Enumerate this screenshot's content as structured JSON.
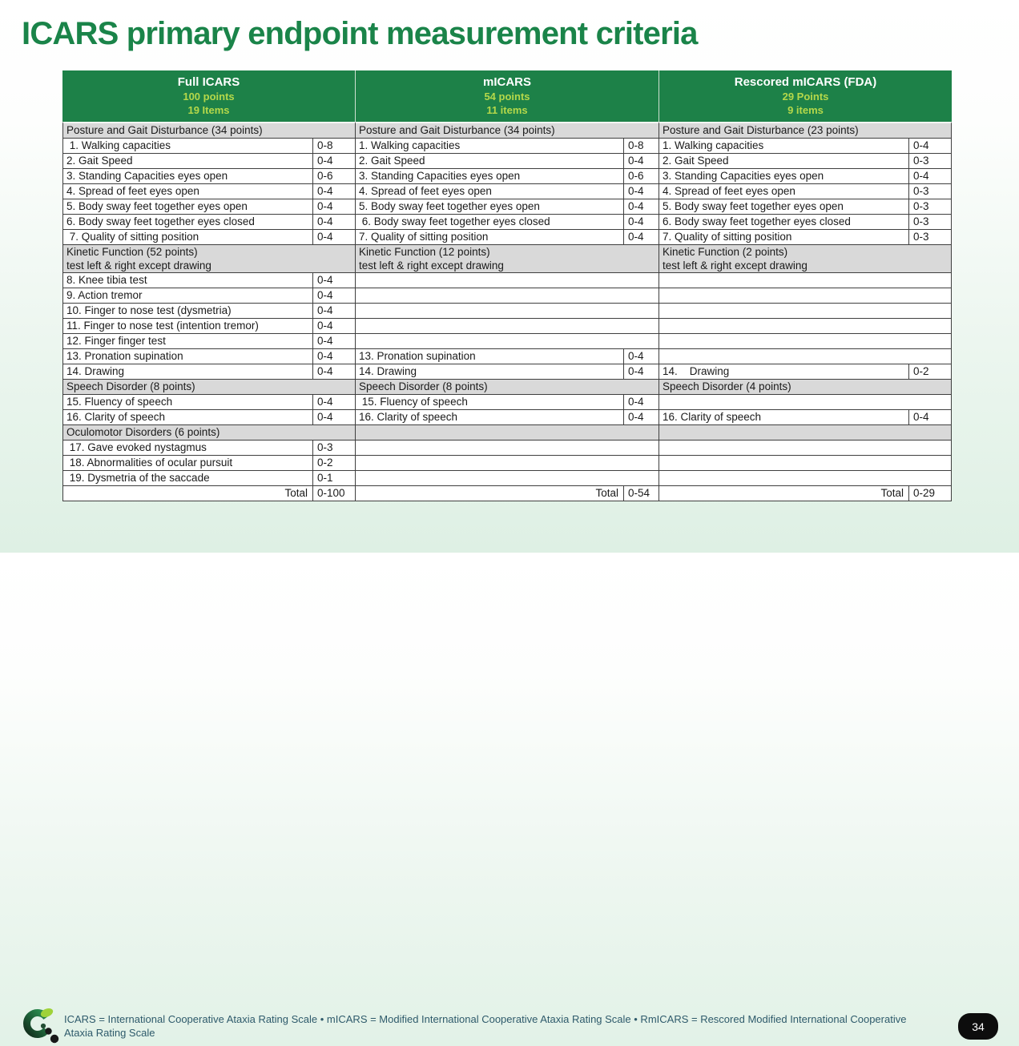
{
  "page": {
    "title": "ICARS primary endpoint measurement criteria",
    "page_number": "34",
    "footnote": {
      "line1": "ICARS = International Cooperative Ataxia Rating Scale • mICARS = Modified International Cooperative Ataxia Rating Scale • RmICARS = Rescored Modified International Cooperative",
      "line2": "Ataxia Rating Scale"
    }
  },
  "colors": {
    "header_green": "#1d8148",
    "title_green": "#1a8449",
    "lime_accent": "#b5d84a",
    "section_gray": "#d9d9d9",
    "border_dark": "#3f3f3f",
    "footnote_blue": "#2e5a6b",
    "badge_black": "#0d0d0d",
    "background_mint": "#def0e4"
  },
  "table": {
    "columns": [
      {
        "id": "full-icars",
        "header": {
          "title": "Full ICARS",
          "points": "100 points",
          "items": "19 Items"
        },
        "rows": [
          {
            "type": "section",
            "label": "Posture and Gait Disturbance (34 points)"
          },
          {
            "type": "item",
            "label": " 1. Walking capacities",
            "value": "0-8"
          },
          {
            "type": "item",
            "label": "2. Gait Speed",
            "value": "0-4"
          },
          {
            "type": "item",
            "label": "3. Standing Capacities eyes open",
            "value": "0-6"
          },
          {
            "type": "item",
            "label": "4. Spread of feet eyes open",
            "value": "0-4"
          },
          {
            "type": "item",
            "label": "5. Body sway feet together eyes open",
            "value": "0-4"
          },
          {
            "type": "item",
            "label": "6. Body sway feet together eyes closed",
            "value": "0-4"
          },
          {
            "type": "item",
            "label": " 7. Quality of sitting position",
            "value": "0-4"
          },
          {
            "type": "section2",
            "label": "Kinetic Function (52 points)\ntest left & right except drawing"
          },
          {
            "type": "item",
            "label": "8. Knee tibia test",
            "value": "0-4"
          },
          {
            "type": "item",
            "label": "9. Action tremor",
            "value": "0-4"
          },
          {
            "type": "item",
            "label": "10. Finger to nose test (dysmetria)",
            "value": "0-4"
          },
          {
            "type": "item",
            "label": "11. Finger to nose test (intention tremor)",
            "value": "0-4"
          },
          {
            "type": "item",
            "label": "12. Finger finger test",
            "value": "0-4"
          },
          {
            "type": "item",
            "label": "13. Pronation supination",
            "value": "0-4"
          },
          {
            "type": "item",
            "label": "14. Drawing",
            "value": "0-4"
          },
          {
            "type": "section",
            "label": "Speech Disorder (8 points)"
          },
          {
            "type": "item",
            "label": "15. Fluency of speech",
            "value": "0-4"
          },
          {
            "type": "item",
            "label": "16. Clarity of speech",
            "value": "0-4"
          },
          {
            "type": "section",
            "label": "Oculomotor Disorders (6 points)"
          },
          {
            "type": "item",
            "label": " 17. Gave evoked nystagmus",
            "value": "0-3"
          },
          {
            "type": "item",
            "label": " 18. Abnormalities of ocular pursuit",
            "value": "0-2"
          },
          {
            "type": "item",
            "label": " 19. Dysmetria of the saccade",
            "value": "0-1"
          },
          {
            "type": "total",
            "label": "Total",
            "value": "0-100"
          }
        ]
      },
      {
        "id": "micars",
        "header": {
          "title": "mICARS",
          "points": "54 points",
          "items": "11 items"
        },
        "rows": [
          {
            "type": "section",
            "label": "Posture and Gait Disturbance (34 points)"
          },
          {
            "type": "item",
            "label": "1. Walking capacities",
            "value": "0-8"
          },
          {
            "type": "item",
            "label": "2. Gait Speed",
            "value": "0-4"
          },
          {
            "type": "item",
            "label": "3. Standing Capacities eyes open",
            "value": "0-6"
          },
          {
            "type": "item",
            "label": "4. Spread of feet eyes open",
            "value": "0-4"
          },
          {
            "type": "item",
            "label": "5. Body sway feet together eyes open",
            "value": "0-4"
          },
          {
            "type": "item",
            "label": " 6. Body sway feet together eyes closed",
            "value": "0-4"
          },
          {
            "type": "item",
            "label": "7. Quality of sitting position",
            "value": "0-4"
          },
          {
            "type": "section2",
            "label": "Kinetic Function (12 points)\ntest left & right except drawing"
          },
          {
            "type": "empty",
            "label": ""
          },
          {
            "type": "empty",
            "label": ""
          },
          {
            "type": "empty",
            "label": ""
          },
          {
            "type": "empty",
            "label": ""
          },
          {
            "type": "empty",
            "label": ""
          },
          {
            "type": "item",
            "label": "13. Pronation supination",
            "value": "0-4"
          },
          {
            "type": "item",
            "label": "14. Drawing",
            "value": "0-4"
          },
          {
            "type": "section",
            "label": "Speech Disorder (8 points)"
          },
          {
            "type": "item",
            "label": " 15. Fluency of speech",
            "value": "0-4"
          },
          {
            "type": "item",
            "label": "16. Clarity of speech",
            "value": "0-4"
          },
          {
            "type": "section",
            "label": ""
          },
          {
            "type": "empty",
            "label": ""
          },
          {
            "type": "empty",
            "label": ""
          },
          {
            "type": "empty",
            "label": ""
          },
          {
            "type": "total",
            "label": "Total",
            "value": "0-54"
          }
        ]
      },
      {
        "id": "rescored-micars-fda",
        "header": {
          "title": "Rescored mICARS (FDA)",
          "points": "29 Points",
          "items": "9 items"
        },
        "rows": [
          {
            "type": "section",
            "label": "Posture and Gait Disturbance (23 points)"
          },
          {
            "type": "item",
            "label": "1. Walking capacities",
            "value": "0-4"
          },
          {
            "type": "item",
            "label": "2. Gait Speed",
            "value": "0-3"
          },
          {
            "type": "item",
            "label": "3. Standing Capacities eyes open",
            "value": "0-4"
          },
          {
            "type": "item",
            "label": "4. Spread of feet eyes open",
            "value": "0-3"
          },
          {
            "type": "item",
            "label": "5. Body sway feet together eyes open",
            "value": "0-3"
          },
          {
            "type": "item",
            "label": "6. Body sway feet together eyes closed",
            "value": "0-3"
          },
          {
            "type": "item",
            "label": "7. Quality of sitting position",
            "value": "0-3"
          },
          {
            "type": "section2",
            "label": "Kinetic Function (2 points)\ntest left & right except drawing"
          },
          {
            "type": "empty",
            "label": ""
          },
          {
            "type": "empty",
            "label": ""
          },
          {
            "type": "empty",
            "label": ""
          },
          {
            "type": "empty",
            "label": ""
          },
          {
            "type": "empty",
            "label": ""
          },
          {
            "type": "empty",
            "label": ""
          },
          {
            "type": "item",
            "label": "14.    Drawing",
            "value": "0-2"
          },
          {
            "type": "section",
            "label": "Speech Disorder (4 points)"
          },
          {
            "type": "empty",
            "label": ""
          },
          {
            "type": "item",
            "label": "16. Clarity of speech",
            "value": "0-4"
          },
          {
            "type": "section",
            "label": ""
          },
          {
            "type": "empty",
            "label": ""
          },
          {
            "type": "empty",
            "label": ""
          },
          {
            "type": "empty",
            "label": ""
          },
          {
            "type": "total",
            "label": "Total",
            "value": "0-29"
          }
        ]
      }
    ]
  }
}
